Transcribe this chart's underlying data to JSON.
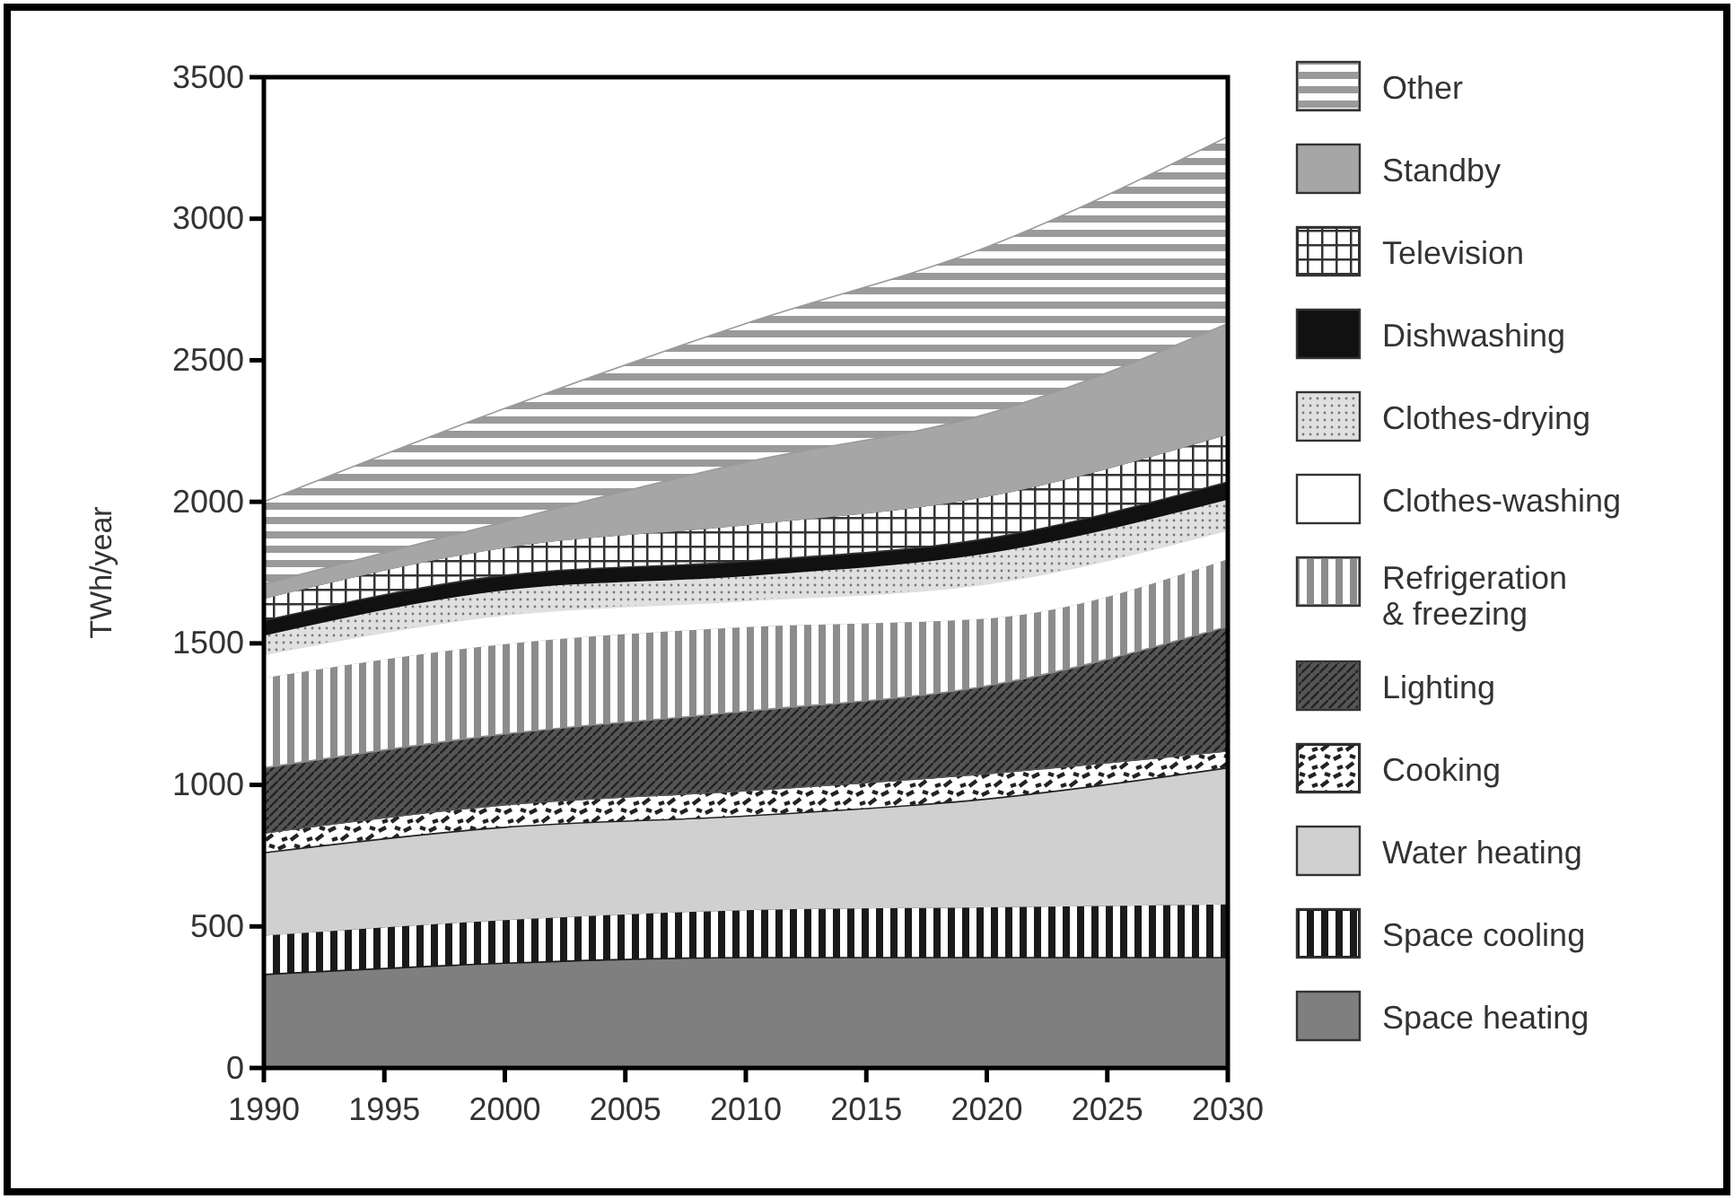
{
  "chart_data": {
    "type": "area",
    "stacked": true,
    "ylabel": "TWh/year",
    "x": [
      1990,
      2000,
      2010,
      2020,
      2030
    ],
    "xlim": [
      1990,
      2030
    ],
    "xticks": [
      1990,
      1995,
      2000,
      2005,
      2010,
      2015,
      2020,
      2025,
      2030
    ],
    "ylim": [
      0,
      3500
    ],
    "yticks": [
      0,
      500,
      1000,
      1500,
      2000,
      2500,
      3000,
      3500
    ],
    "legend": "right",
    "grid": false,
    "series": [
      {
        "name": "Space heating",
        "color": "#7f7f80",
        "values": [
          330,
          370,
          390,
          390,
          390
        ]
      },
      {
        "name": "Space cooling",
        "color": "#1a1a1a",
        "values": [
          140,
          155,
          170,
          180,
          190
        ]
      },
      {
        "name": "Water heating",
        "color": "#d0d0d0",
        "values": [
          290,
          325,
          330,
          380,
          480
        ]
      },
      {
        "name": "Cooking",
        "color": "#222222",
        "values": [
          70,
          80,
          90,
          90,
          60
        ]
      },
      {
        "name": "Lighting",
        "color": "#555555",
        "values": [
          230,
          250,
          280,
          310,
          440
        ]
      },
      {
        "name": "Refrigeration & freezing",
        "color": "#8c8c8c",
        "values": [
          320,
          320,
          300,
          240,
          240
        ]
      },
      {
        "name": "Clothes-washing",
        "color": "#ffffff",
        "values": [
          80,
          100,
          90,
          120,
          100
        ]
      },
      {
        "name": "Clothes-drying",
        "color": "#e0e0e0",
        "values": [
          70,
          90,
          90,
          110,
          110
        ]
      },
      {
        "name": "Dishwashing",
        "color": "#111111",
        "values": [
          50,
          50,
          50,
          50,
          60
        ]
      },
      {
        "name": "Television",
        "color": "#333333",
        "values": [
          80,
          100,
          130,
          150,
          170
        ]
      },
      {
        "name": "Standby",
        "color": "#a6a6a6",
        "values": [
          50,
          90,
          220,
          290,
          390
        ]
      },
      {
        "name": "Other",
        "color": "#9a9a9a",
        "values": [
          290,
          400,
          490,
          590,
          660
        ]
      }
    ]
  }
}
